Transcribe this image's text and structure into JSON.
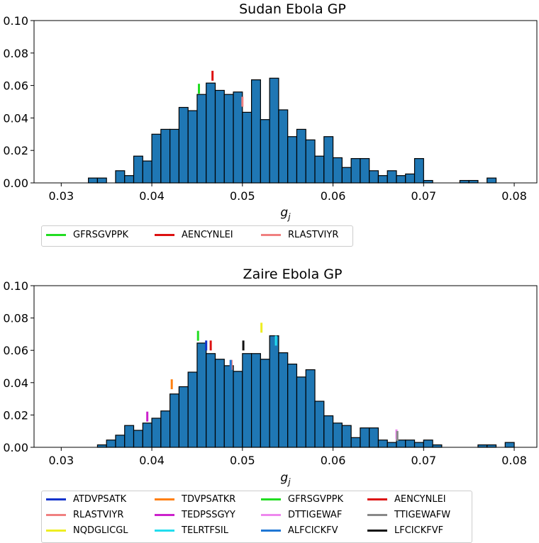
{
  "chart_data": [
    {
      "type": "bar",
      "title": "Sudan Ebola GP",
      "xlabel": "g_j",
      "ylabel": "",
      "xlim": [
        0.027,
        0.0825
      ],
      "ylim": [
        0,
        0.1
      ],
      "xticks": [
        "0.03",
        "0.04",
        "0.05",
        "0.06",
        "0.07",
        "0.08"
      ],
      "yticks": [
        "0.00",
        "0.02",
        "0.04",
        "0.06",
        "0.08",
        "0.10"
      ],
      "bin_start": 0.033,
      "bin_width": 0.001,
      "values": [
        0.003,
        0.003,
        0,
        0.0075,
        0.0045,
        0.0165,
        0.0135,
        0.03,
        0.033,
        0.033,
        0.0465,
        0.0445,
        0.0545,
        0.0615,
        0.057,
        0.0545,
        0.056,
        0.0435,
        0.0635,
        0.039,
        0.0645,
        0.045,
        0.0285,
        0.033,
        0.0265,
        0.0165,
        0.0285,
        0.0155,
        0.0095,
        0.015,
        0.015,
        0.0075,
        0.0045,
        0.0075,
        0.0045,
        0.0055,
        0.015,
        0.0015,
        0,
        0,
        0,
        0.0015,
        0.0015,
        0,
        0.003
      ],
      "markers": [
        {
          "label": "GFRSGVPPK",
          "x": 0.0452,
          "y": 0.058,
          "color": "#22dd22"
        },
        {
          "label": "AENCYNLEI",
          "x": 0.0467,
          "y": 0.066,
          "color": "#dd1111"
        },
        {
          "label": "RLASTVIYR",
          "x": 0.05,
          "y": 0.05,
          "color": "#f08080"
        }
      ],
      "legend": [
        {
          "label": "GFRSGVPPK",
          "color": "#22dd22"
        },
        {
          "label": "AENCYNLEI",
          "color": "#dd1111"
        },
        {
          "label": "RLASTVIYR",
          "color": "#f08080"
        }
      ]
    },
    {
      "type": "bar",
      "title": "Zaire Ebola GP",
      "xlabel": "g_j",
      "ylabel": "",
      "xlim": [
        0.027,
        0.0825
      ],
      "ylim": [
        0,
        0.1
      ],
      "xticks": [
        "0.03",
        "0.04",
        "0.05",
        "0.06",
        "0.07",
        "0.08"
      ],
      "yticks": [
        "0.00",
        "0.02",
        "0.04",
        "0.06",
        "0.08",
        "0.10"
      ],
      "bin_start": 0.034,
      "bin_width": 0.001,
      "values": [
        0.0015,
        0.0045,
        0.0075,
        0.0135,
        0.0105,
        0.015,
        0.018,
        0.0225,
        0.033,
        0.0375,
        0.0465,
        0.0645,
        0.058,
        0.0545,
        0.0505,
        0.047,
        0.058,
        0.058,
        0.0545,
        0.069,
        0.0585,
        0.0515,
        0.0435,
        0.048,
        0.0285,
        0.0195,
        0.015,
        0.0135,
        0.006,
        0.012,
        0.012,
        0.0045,
        0.003,
        0.0045,
        0.0045,
        0.003,
        0.0045,
        0.0015,
        0,
        0,
        0,
        0,
        0.0015,
        0.0015,
        0,
        0.003
      ],
      "markers": [
        {
          "label": "ATDVPSATK",
          "x": 0.046,
          "y": 0.063,
          "color": "#1133cc"
        },
        {
          "label": "TDVPSATKR",
          "x": 0.0422,
          "y": 0.039,
          "color": "#ff7f0e"
        },
        {
          "label": "GFRSGVPPK",
          "x": 0.0451,
          "y": 0.069,
          "color": "#22dd22"
        },
        {
          "label": "AENCYNLEI",
          "x": 0.0465,
          "y": 0.063,
          "color": "#dd1111"
        },
        {
          "label": "RLASTVIYR",
          "x": 0.0488,
          "y": 0.051,
          "color": "#f08080"
        },
        {
          "label": "TEDPSSGYY",
          "x": 0.0395,
          "y": 0.019,
          "color": "#cc22cc"
        },
        {
          "label": "DTTIGEWAF",
          "x": 0.067,
          "y": 0.008,
          "color": "#ee88ee"
        },
        {
          "label": "TTIGEWAFW",
          "x": 0.0671,
          "y": 0.007,
          "color": "#888888"
        },
        {
          "label": "NQDGLICGL",
          "x": 0.0521,
          "y": 0.074,
          "color": "#eeee22"
        },
        {
          "label": "TELRTFSIL",
          "x": 0.0537,
          "y": 0.066,
          "color": "#22ddee"
        },
        {
          "label": "ALFCICKFV",
          "x": 0.0487,
          "y": 0.051,
          "color": "#1f77d4"
        },
        {
          "label": "LFCICKFVF",
          "x": 0.0501,
          "y": 0.063,
          "color": "#111111"
        }
      ],
      "legend": [
        {
          "label": "ATDVPSATK",
          "color": "#1133cc"
        },
        {
          "label": "TDVPSATKR",
          "color": "#ff7f0e"
        },
        {
          "label": "GFRSGVPPK",
          "color": "#22dd22"
        },
        {
          "label": "AENCYNLEI",
          "color": "#dd1111"
        },
        {
          "label": "RLASTVIYR",
          "color": "#f08080"
        },
        {
          "label": "TEDPSSGYY",
          "color": "#cc22cc"
        },
        {
          "label": "DTTIGEWAF",
          "color": "#ee88ee"
        },
        {
          "label": "TTIGEWAFW",
          "color": "#888888"
        },
        {
          "label": "NQDGLICGL",
          "color": "#eeee22"
        },
        {
          "label": "TELRTFSIL",
          "color": "#22ddee"
        },
        {
          "label": "ALFCICKFV",
          "color": "#1f77d4"
        },
        {
          "label": "LFCICKFVF",
          "color": "#111111"
        }
      ]
    }
  ],
  "colors": {
    "bar_fill": "#1f77b4",
    "bar_edge": "#000000"
  }
}
